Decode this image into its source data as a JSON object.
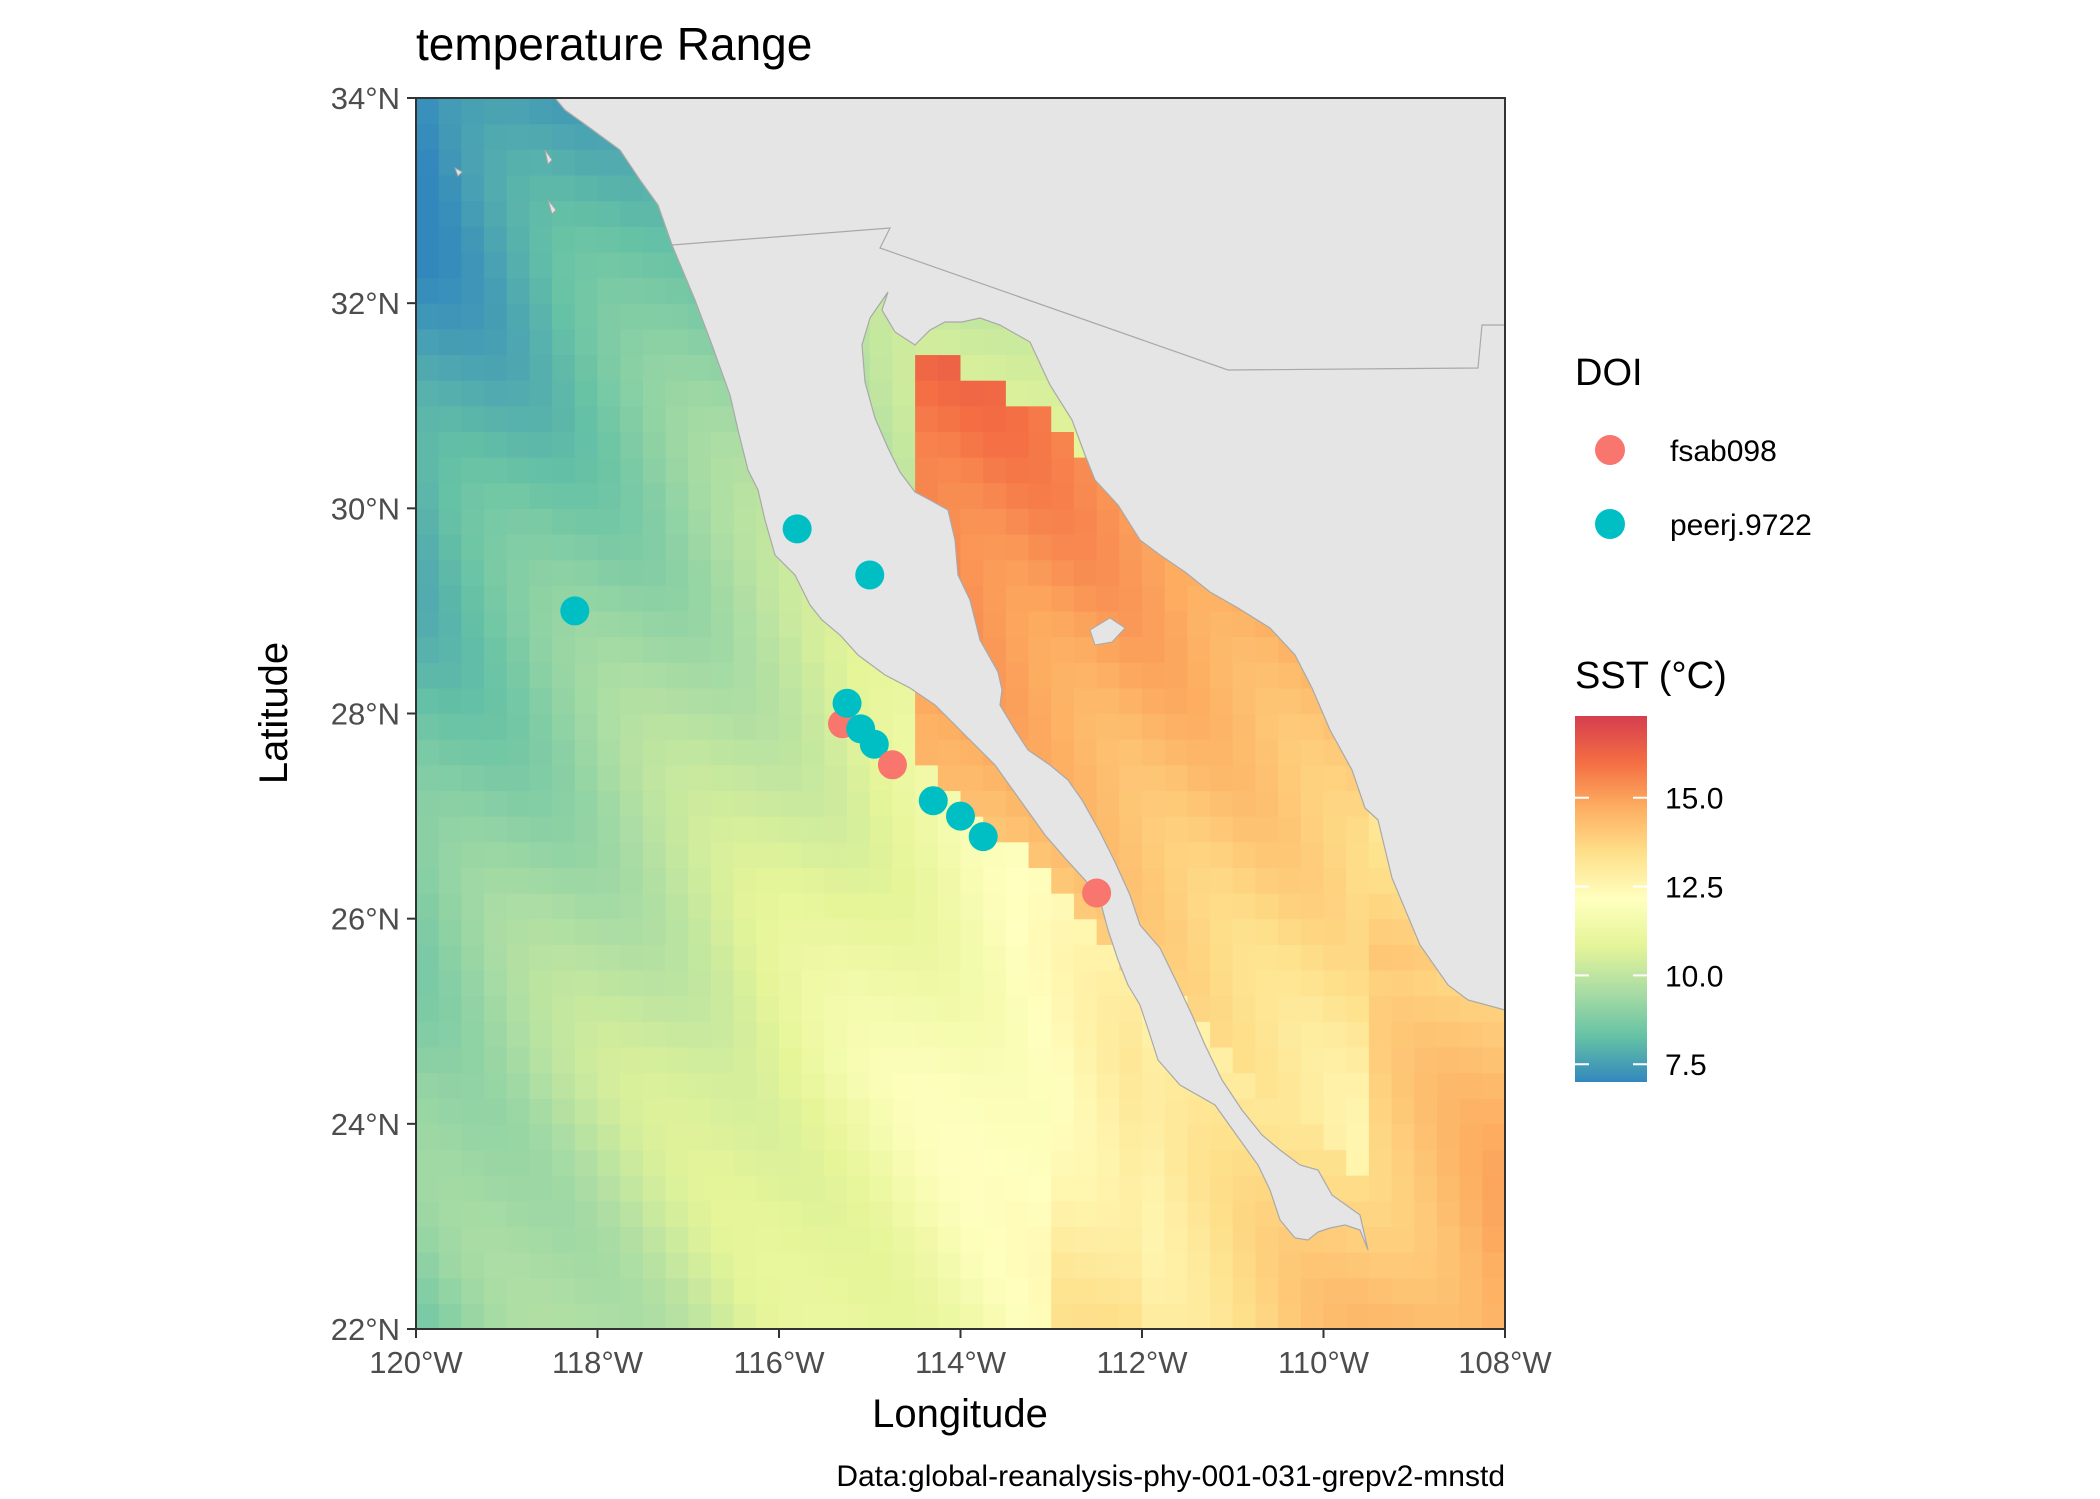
{
  "title": "temperature Range",
  "caption": "Data:global-reanalysis-phy-001-031-grepv2-mnstd",
  "axes": {
    "x": {
      "label": "Longitude",
      "range": [
        -120,
        -108
      ],
      "ticks": [
        {
          "value": -120,
          "label": "120°W"
        },
        {
          "value": -118,
          "label": "118°W"
        },
        {
          "value": -116,
          "label": "116°W"
        },
        {
          "value": -114,
          "label": "114°W"
        },
        {
          "value": -112,
          "label": "112°W"
        },
        {
          "value": -110,
          "label": "110°W"
        },
        {
          "value": -108,
          "label": "108°W"
        }
      ]
    },
    "y": {
      "label": "Latitude",
      "range": [
        22,
        34
      ],
      "ticks": [
        {
          "value": 22,
          "label": "22°N"
        },
        {
          "value": 24,
          "label": "24°N"
        },
        {
          "value": 26,
          "label": "26°N"
        },
        {
          "value": 28,
          "label": "28°N"
        },
        {
          "value": 30,
          "label": "30°N"
        },
        {
          "value": 32,
          "label": "32°N"
        },
        {
          "value": 34,
          "label": "34°N"
        }
      ]
    }
  },
  "legend_doi": {
    "title": "DOI",
    "items": [
      {
        "label": "fsab098",
        "color": "#F8766D"
      },
      {
        "label": "peerj.9722",
        "color": "#00BFC4"
      }
    ]
  },
  "legend_sst": {
    "title": "SST (°C)",
    "range": [
      7.0,
      17.3
    ],
    "ticks": [
      {
        "value": 7.5,
        "label": "7.5"
      },
      {
        "value": 10.0,
        "label": "10.0"
      },
      {
        "value": 12.5,
        "label": "12.5"
      },
      {
        "value": 15.0,
        "label": "15.0"
      }
    ]
  },
  "colors": {
    "land": "#E5E5E5",
    "border": "#A9A9A9",
    "panel_border": "#333333",
    "scale": [
      "#3288BD",
      "#66C2A5",
      "#ABDDA4",
      "#E6F598",
      "#FFFFBF",
      "#FEE08B",
      "#FDAE61",
      "#F46D43",
      "#D53E4F"
    ]
  },
  "points": [
    {
      "doi": "peerj.9722",
      "lon": -118.25,
      "lat": 29.0
    },
    {
      "doi": "peerj.9722",
      "lon": -115.8,
      "lat": 29.8
    },
    {
      "doi": "peerj.9722",
      "lon": -115.0,
      "lat": 29.35
    },
    {
      "doi": "fsab098",
      "lon": -115.3,
      "lat": 27.9
    },
    {
      "doi": "peerj.9722",
      "lon": -115.25,
      "lat": 28.1
    },
    {
      "doi": "peerj.9722",
      "lon": -115.1,
      "lat": 27.85
    },
    {
      "doi": "peerj.9722",
      "lon": -114.95,
      "lat": 27.7
    },
    {
      "doi": "fsab098",
      "lon": -114.75,
      "lat": 27.5
    },
    {
      "doi": "peerj.9722",
      "lon": -114.3,
      "lat": 27.15
    },
    {
      "doi": "peerj.9722",
      "lon": -114.0,
      "lat": 27.0
    },
    {
      "doi": "peerj.9722",
      "lon": -113.75,
      "lat": 26.8
    },
    {
      "doi": "fsab098",
      "lon": -112.5,
      "lat": 26.25
    }
  ]
}
